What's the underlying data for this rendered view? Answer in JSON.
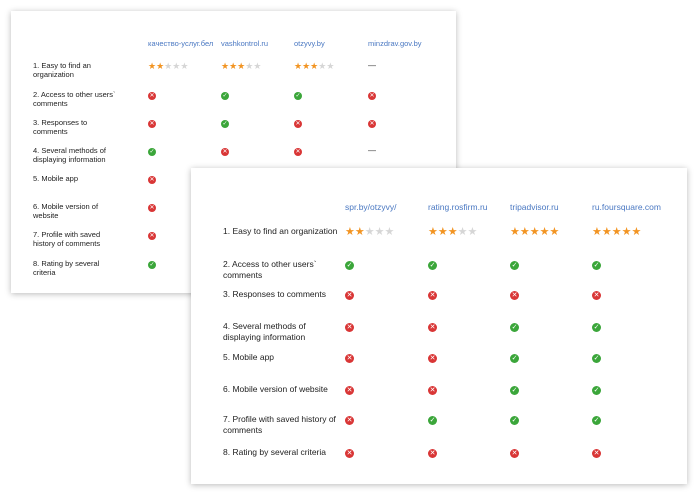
{
  "back_table": {
    "sites": [
      "качество-услуг.бел",
      "vashkontrol.ru",
      "otzyvy.by",
      "minzdrav.gov.by"
    ],
    "criteria": [
      "1. Easy to find an organization",
      "2. Access to other users` comments",
      "3. Responses to comments",
      "4. Several methods of displaying information",
      "5. Mobile app",
      "6. Mobile version of website",
      "7. Profile with saved history of comments",
      "8. Rating by several criteria"
    ],
    "cells": [
      [
        {
          "stars": 2
        },
        {
          "stars": 3
        },
        {
          "stars": 3
        },
        {
          "dash": "—"
        }
      ],
      [
        "no",
        "yes",
        "yes",
        "no"
      ],
      [
        "no",
        "yes",
        "no",
        "no"
      ],
      [
        "yes",
        "no",
        "no",
        {
          "dash": "—"
        }
      ],
      [
        "no"
      ],
      [
        "no"
      ],
      [
        "no"
      ],
      [
        "yes"
      ]
    ]
  },
  "front_table": {
    "sites": [
      "spr.by/otzyvy/",
      "rating.rosfirm.ru",
      "tripadvisor.ru",
      "ru.foursquare.com"
    ],
    "criteria": [
      "1. Easy to find an organization",
      "2. Access to other users` comments",
      "3. Responses to comments",
      "4. Several methods of displaying information",
      "5. Mobile app",
      "6. Mobile version of website",
      "7. Profile with saved history of comments",
      "8. Rating by several criteria"
    ],
    "cells": [
      [
        {
          "stars": 2
        },
        {
          "stars": 3
        },
        {
          "stars": 5
        },
        {
          "stars": 5
        }
      ],
      [
        "yes",
        "yes",
        "yes",
        "yes"
      ],
      [
        "no",
        "no",
        "no",
        "no"
      ],
      [
        "no",
        "no",
        "yes",
        "yes"
      ],
      [
        "no",
        "no",
        "yes",
        "yes"
      ],
      [
        "no",
        "no",
        "yes",
        "yes"
      ],
      [
        "no",
        "yes",
        "yes",
        "yes"
      ],
      [
        "no",
        "no",
        "no",
        "no"
      ]
    ]
  },
  "colors": {
    "site_link": "#4a78c2",
    "yes": "#3ba63a",
    "no": "#d93636",
    "star_on": "#f29422",
    "star_off": "#d6d6d6"
  },
  "icons": {
    "yes": "check-circle-icon",
    "no": "cross-circle-icon",
    "star": "star-icon"
  }
}
